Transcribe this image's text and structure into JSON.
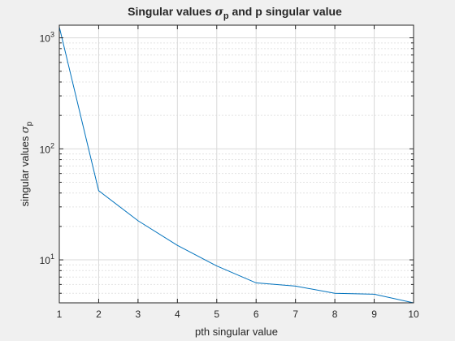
{
  "chart_data": {
    "type": "line",
    "title": {
      "prefix": "Singular values ",
      "symbol": "σ",
      "subscript": "p",
      "suffix": " and p singular value"
    },
    "xlabel": "pth singular value",
    "ylabel": {
      "prefix": "singular values ",
      "symbol": "σ",
      "subscript": "p"
    },
    "xlim": [
      1,
      10
    ],
    "ylim": [
      4.1,
      1300
    ],
    "yscale": "log",
    "grid": true,
    "minor_grid": true,
    "x_ticks": [
      1,
      2,
      3,
      4,
      5,
      6,
      7,
      8,
      9,
      10
    ],
    "y_ticks": [
      {
        "value": 10,
        "base": "10",
        "exp": "1"
      },
      {
        "value": 100,
        "base": "10",
        "exp": "2"
      },
      {
        "value": 1000,
        "base": "10",
        "exp": "3"
      }
    ],
    "series": [
      {
        "color": "#0072bd",
        "x": [
          1,
          2,
          3,
          4,
          5,
          6,
          7,
          8,
          9,
          10
        ],
        "y": [
          1250,
          42,
          22.5,
          13.5,
          8.8,
          6.2,
          5.8,
          5.0,
          4.9,
          4.1
        ]
      }
    ]
  }
}
